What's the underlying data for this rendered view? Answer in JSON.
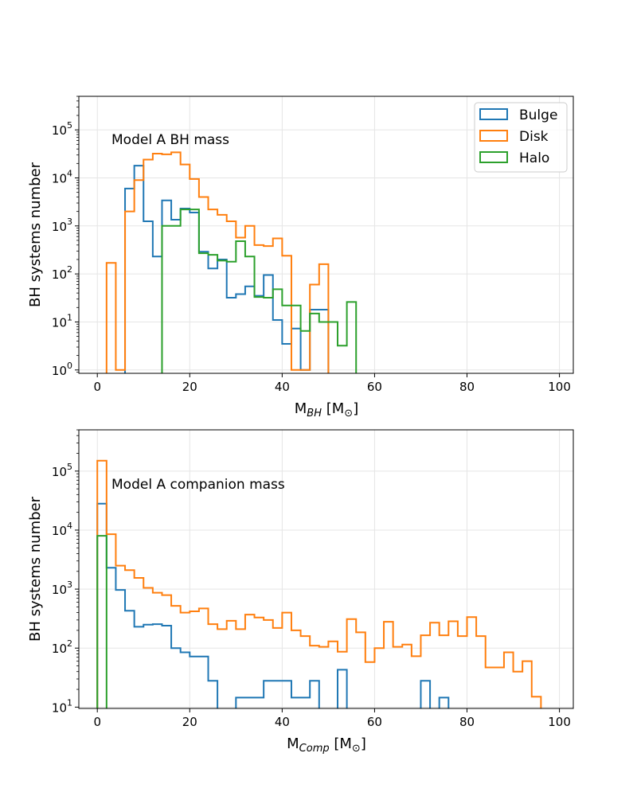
{
  "figure": {
    "panels": [
      {
        "xlabel_main": "M",
        "xlabel_sub": "BH",
        "xlabel_unit": "[M",
        "xlabel_close": "]",
        "solar_symbol": "⊙",
        "ylabel": "BH systems number",
        "annotation": "Model A BH mass",
        "legend": [
          "Bulge",
          "Disk",
          "Halo"
        ],
        "xticks": [
          "0",
          "20",
          "40",
          "60",
          "80",
          "100"
        ],
        "ytick_base": "10",
        "ytick_exps": [
          "0",
          "1",
          "2",
          "3",
          "4",
          "5"
        ]
      },
      {
        "xlabel_main": "M",
        "xlabel_sub": "Comp",
        "xlabel_unit": "[M",
        "xlabel_close": "]",
        "solar_symbol": "⊙",
        "ylabel": "BH systems number",
        "annotation": "Model A companion mass",
        "xticks": [
          "0",
          "20",
          "40",
          "60",
          "80",
          "100"
        ],
        "ytick_base": "10",
        "ytick_exps": [
          "1",
          "2",
          "3",
          "4",
          "5"
        ]
      }
    ]
  },
  "chart_data": [
    {
      "type": "histogram",
      "title": "",
      "annotation": "Model A BH mass",
      "xlabel": "M_BH [M_sun]",
      "ylabel": "BH systems number",
      "xlim": [
        -4,
        103
      ],
      "ylim": [
        0.85,
        500000
      ],
      "yscale": "log",
      "bin_width": 2,
      "legend_position": "top-right",
      "grid": true,
      "series": [
        {
          "name": "Bulge",
          "color": "#1f77b4",
          "bins": [
            [
              6,
              6000
            ],
            [
              8,
              18000
            ],
            [
              10,
              1250
            ],
            [
              12,
              230
            ],
            [
              14,
              3400
            ],
            [
              16,
              1350
            ],
            [
              18,
              2300
            ],
            [
              20,
              1900
            ],
            [
              22,
              290
            ],
            [
              24,
              130
            ],
            [
              26,
              200
            ],
            [
              28,
              32
            ],
            [
              30,
              38
            ],
            [
              32,
              55
            ],
            [
              34,
              35
            ],
            [
              36,
              95
            ],
            [
              38,
              11
            ],
            [
              40,
              3.5
            ],
            [
              42,
              7.3
            ],
            [
              44,
              1
            ],
            [
              46,
              18
            ],
            [
              48,
              18
            ]
          ]
        },
        {
          "name": "Disk",
          "color": "#ff7f0e",
          "bins": [
            [
              2,
              170
            ],
            [
              4,
              1
            ],
            [
              6,
              2000
            ],
            [
              8,
              9000
            ],
            [
              10,
              24000
            ],
            [
              12,
              32000
            ],
            [
              14,
              31000
            ],
            [
              16,
              34000
            ],
            [
              18,
              19000
            ],
            [
              20,
              9500
            ],
            [
              22,
              4000
            ],
            [
              24,
              2200
            ],
            [
              26,
              1700
            ],
            [
              28,
              1250
            ],
            [
              30,
              570
            ],
            [
              32,
              1000
            ],
            [
              34,
              400
            ],
            [
              36,
              380
            ],
            [
              38,
              550
            ],
            [
              40,
              240
            ],
            [
              42,
              1
            ],
            [
              44,
              1
            ],
            [
              46,
              60
            ],
            [
              48,
              160
            ]
          ]
        },
        {
          "name": "Halo",
          "color": "#2ca02c",
          "bins": [
            [
              14,
              1000
            ],
            [
              16,
              1000
            ],
            [
              18,
              2200
            ],
            [
              20,
              2200
            ],
            [
              22,
              270
            ],
            [
              24,
              250
            ],
            [
              26,
              190
            ],
            [
              28,
              180
            ],
            [
              30,
              480
            ],
            [
              32,
              230
            ],
            [
              34,
              33
            ],
            [
              36,
              32
            ],
            [
              38,
              48
            ],
            [
              40,
              22
            ],
            [
              42,
              22
            ],
            [
              44,
              6.5
            ],
            [
              46,
              15
            ],
            [
              48,
              10
            ],
            [
              50,
              10
            ],
            [
              52,
              3.2
            ],
            [
              54,
              26
            ]
          ]
        }
      ]
    },
    {
      "type": "histogram",
      "title": "",
      "annotation": "Model A companion mass",
      "xlabel": "M_Comp [M_sun]",
      "ylabel": "BH systems number",
      "xlim": [
        -4,
        103
      ],
      "ylim": [
        9.5,
        500000
      ],
      "yscale": "log",
      "bin_width": 2,
      "grid": true,
      "series": [
        {
          "name": "Bulge",
          "color": "#1f77b4",
          "bins": [
            [
              0,
              28000
            ],
            [
              2,
              2300
            ],
            [
              4,
              970
            ],
            [
              6,
              430
            ],
            [
              8,
              230
            ],
            [
              10,
              250
            ],
            [
              12,
              255
            ],
            [
              14,
              240
            ],
            [
              16,
              100
            ],
            [
              18,
              85
            ],
            [
              20,
              72
            ],
            [
              22,
              72
            ],
            [
              24,
              28
            ],
            [
              26,
              1
            ],
            [
              28,
              1
            ],
            [
              30,
              14.5
            ],
            [
              32,
              14.5
            ],
            [
              34,
              14.5
            ],
            [
              36,
              28
            ],
            [
              38,
              28
            ],
            [
              40,
              28
            ],
            [
              42,
              14.5
            ],
            [
              44,
              14.5
            ],
            [
              46,
              28
            ],
            [
              48,
              1
            ],
            [
              50,
              1
            ],
            [
              52,
              43
            ],
            [
              54,
              1
            ],
            [
              56,
              1
            ],
            [
              58,
              1
            ],
            [
              60,
              1
            ],
            [
              62,
              1
            ],
            [
              64,
              1
            ],
            [
              66,
              1
            ],
            [
              68,
              1
            ],
            [
              70,
              28
            ],
            [
              72,
              1
            ],
            [
              74,
              14.5
            ]
          ]
        },
        {
          "name": "Disk",
          "color": "#ff7f0e",
          "bins": [
            [
              0,
              150000
            ],
            [
              2,
              8500
            ],
            [
              4,
              2500
            ],
            [
              6,
              2100
            ],
            [
              8,
              1550
            ],
            [
              10,
              1050
            ],
            [
              12,
              870
            ],
            [
              14,
              790
            ],
            [
              16,
              520
            ],
            [
              18,
              400
            ],
            [
              20,
              420
            ],
            [
              22,
              470
            ],
            [
              24,
              255
            ],
            [
              26,
              210
            ],
            [
              28,
              290
            ],
            [
              30,
              210
            ],
            [
              32,
              370
            ],
            [
              34,
              330
            ],
            [
              36,
              300
            ],
            [
              38,
              220
            ],
            [
              40,
              400
            ],
            [
              42,
              200
            ],
            [
              44,
              160
            ],
            [
              46,
              110
            ],
            [
              48,
              105
            ],
            [
              50,
              130
            ],
            [
              52,
              87
            ],
            [
              54,
              310
            ],
            [
              56,
              185
            ],
            [
              58,
              58
            ],
            [
              60,
              100
            ],
            [
              62,
              280
            ],
            [
              64,
              105
            ],
            [
              66,
              115
            ],
            [
              68,
              73
            ],
            [
              70,
              165
            ],
            [
              72,
              270
            ],
            [
              74,
              165
            ],
            [
              76,
              285
            ],
            [
              78,
              160
            ],
            [
              80,
              335
            ],
            [
              82,
              160
            ],
            [
              84,
              47
            ],
            [
              86,
              47
            ],
            [
              88,
              85
            ],
            [
              90,
              40
            ],
            [
              92,
              60
            ],
            [
              94,
              15
            ]
          ]
        },
        {
          "name": "Halo",
          "color": "#2ca02c",
          "bins": [
            [
              0,
              8000
            ]
          ]
        }
      ]
    }
  ]
}
